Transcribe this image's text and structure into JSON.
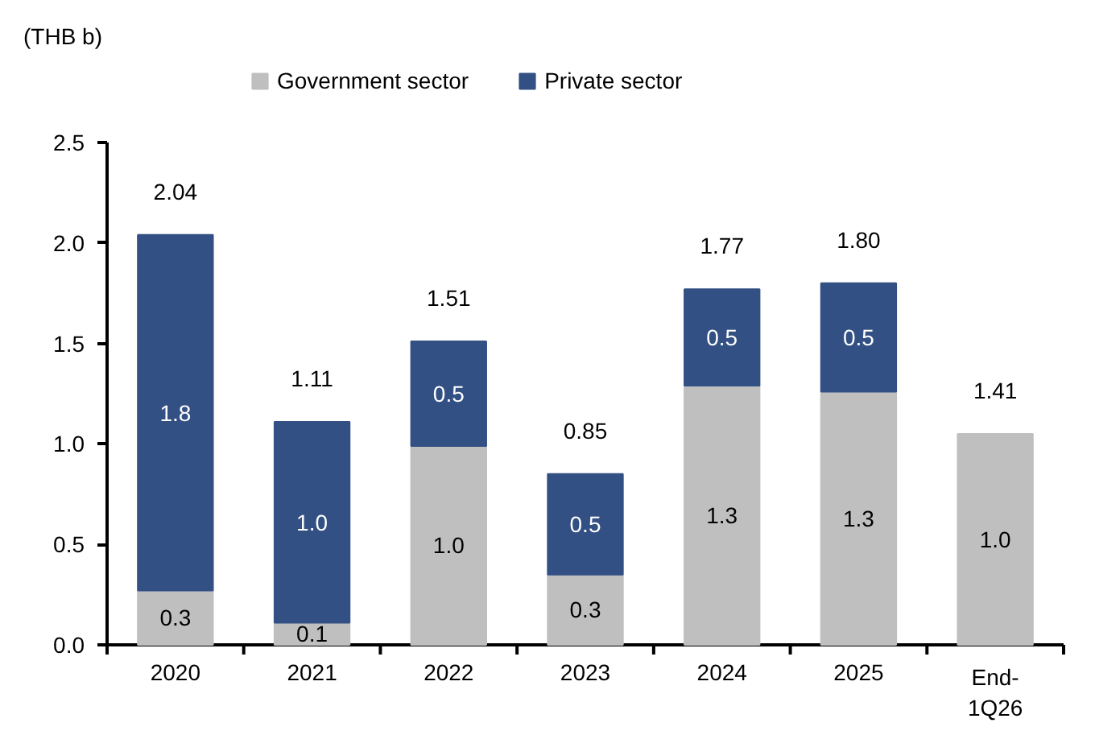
{
  "chart_data": {
    "type": "bar",
    "stacked": true,
    "ylabel": "(THB b)",
    "categories": [
      "2020",
      "2021",
      "2022",
      "2023",
      "2024",
      "2025",
      "End-\n1Q26"
    ],
    "series": [
      {
        "name": "Government sector",
        "color": "#bfbfbf",
        "values": [
          0.27,
          0.11,
          0.99,
          0.35,
          1.29,
          1.26,
          1.05
        ],
        "value_labels": [
          "0.3",
          "0.1",
          "1.0",
          "0.3",
          "1.3",
          "1.3",
          "1.0"
        ]
      },
      {
        "name": "Private sector",
        "color": "#335084",
        "values": [
          1.77,
          1.0,
          0.52,
          0.5,
          0.48,
          0.54,
          null
        ],
        "value_labels": [
          "1.8",
          "1.0",
          "0.5",
          "0.5",
          "0.5",
          "0.5",
          null
        ]
      }
    ],
    "annotations": [
      {
        "text": "2.04",
        "x": "2020",
        "y": 2.04
      },
      {
        "text": "1.11",
        "x": "2021",
        "y": 1.11
      },
      {
        "text": "1.51",
        "x": "2022",
        "y": 1.51
      },
      {
        "text": "0.85",
        "x": "2023",
        "y": 0.85
      },
      {
        "text": "1.77",
        "x": "2024",
        "y": 1.77
      },
      {
        "text": "1.80",
        "x": "2025",
        "y": 1.8
      },
      {
        "text": "1.41",
        "x": "End-\n1Q26",
        "y": 1.05
      }
    ],
    "ylim": [
      0,
      2.5
    ],
    "yticks": [
      {
        "value": 0,
        "label": "0.0"
      },
      {
        "value": 0.5,
        "label": "0.5"
      },
      {
        "value": 1,
        "label": "1.0"
      },
      {
        "value": 1.5,
        "label": "1.5"
      },
      {
        "value": 2,
        "label": "2.0"
      },
      {
        "value": 2.5,
        "label": "2.5"
      }
    ],
    "grid": false,
    "legend": "top"
  }
}
